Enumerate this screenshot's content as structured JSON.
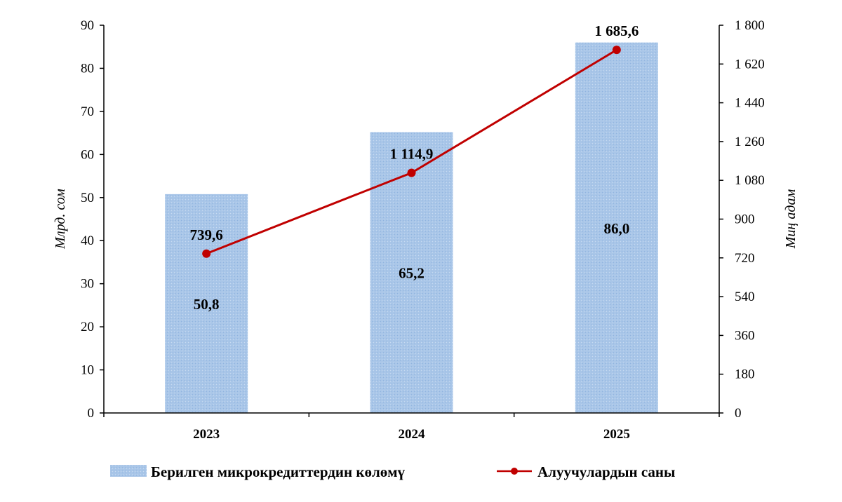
{
  "chart_data": {
    "type": "bar",
    "categories": [
      "2023",
      "2024",
      "2025"
    ],
    "y_left": {
      "label": "Млрд. сом",
      "range": [
        0,
        90
      ],
      "ticks": [
        "0",
        "10",
        "20",
        "30",
        "40",
        "50",
        "60",
        "70",
        "80",
        "90"
      ]
    },
    "y_right": {
      "label": "Миң адам",
      "range": [
        0,
        1800
      ],
      "ticks": [
        "0",
        "180",
        "360",
        "540",
        "720",
        "900",
        "1 080",
        "1 260",
        "1 440",
        "1 620",
        "1 800"
      ]
    },
    "series": [
      {
        "name": "Берилген микрокредиттердин көлөмү",
        "type": "bar",
        "axis": "left",
        "values": [
          50.8,
          65.2,
          86.0
        ],
        "labels": [
          "50,8",
          "65,2",
          "86,0"
        ],
        "color": "#a9c6e8"
      },
      {
        "name": "Алуучулардын саны",
        "type": "line",
        "axis": "right",
        "values": [
          739.6,
          1114.9,
          1685.6
        ],
        "labels": [
          "739,6",
          "1 114,9",
          "1 685,6"
        ],
        "color": "#c00000"
      }
    ],
    "legend_position": "bottom",
    "grid": false
  }
}
